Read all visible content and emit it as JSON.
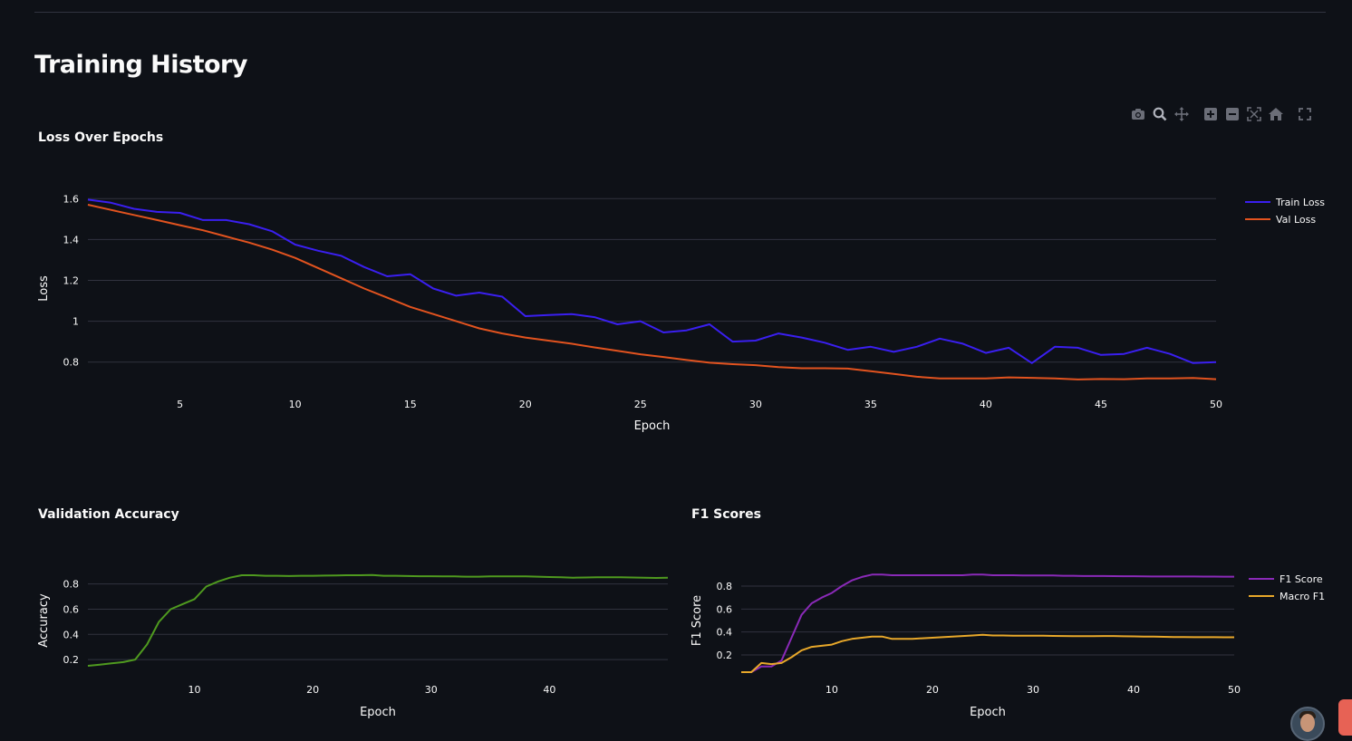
{
  "page": {
    "title": "Training History"
  },
  "modebar": {
    "icons": [
      "camera-icon",
      "zoom-icon",
      "pan-icon",
      "zoom-in-icon",
      "zoom-out-icon",
      "autoscale-icon",
      "home-icon",
      "fullscreen-icon"
    ]
  },
  "colors": {
    "background": "#0e1117",
    "grid": "#31333f",
    "text": "#fafafa",
    "train_loss": "#3a1ff0",
    "val_loss": "#e2531f",
    "accuracy": "#4f9a1f",
    "f1": "#8a2ab8",
    "macro_f1": "#e8a82a"
  },
  "chart_data": [
    {
      "title": "Loss Over Epochs",
      "type": "line",
      "xlabel": "Epoch",
      "ylabel": "Loss",
      "xlim": [
        1,
        50
      ],
      "ylim": [
        0.71,
        1.61
      ],
      "xticks": [
        5,
        10,
        15,
        20,
        25,
        30,
        35,
        40,
        45,
        50
      ],
      "yticks": [
        0.8,
        1,
        1.2,
        1.4,
        1.6
      ],
      "ytick_labels": [
        "0.8",
        "1",
        "1.2",
        "1.4",
        "1.6"
      ],
      "grid": true,
      "legend": "top-right",
      "x": [
        1,
        2,
        3,
        4,
        5,
        6,
        7,
        8,
        9,
        10,
        11,
        12,
        13,
        14,
        15,
        16,
        17,
        18,
        19,
        20,
        21,
        22,
        23,
        24,
        25,
        26,
        27,
        28,
        29,
        30,
        31,
        32,
        33,
        34,
        35,
        36,
        37,
        38,
        39,
        40,
        41,
        42,
        43,
        44,
        45,
        46,
        47,
        48,
        49,
        50
      ],
      "series": [
        {
          "name": "Train Loss",
          "color": "#3a1ff0",
          "values": [
            1.595,
            1.58,
            1.55,
            1.535,
            1.53,
            1.495,
            1.495,
            1.475,
            1.44,
            1.375,
            1.345,
            1.32,
            1.265,
            1.22,
            1.23,
            1.16,
            1.125,
            1.14,
            1.12,
            1.025,
            1.03,
            1.035,
            1.02,
            0.985,
            1.0,
            0.945,
            0.955,
            0.985,
            0.9,
            0.905,
            0.94,
            0.92,
            0.895,
            0.86,
            0.875,
            0.85,
            0.875,
            0.915,
            0.89,
            0.845,
            0.87,
            0.795,
            0.875,
            0.87,
            0.835,
            0.84,
            0.87,
            0.84,
            0.795,
            0.8
          ]
        },
        {
          "name": "Val Loss",
          "color": "#e2531f",
          "values": [
            1.57,
            1.545,
            1.52,
            1.495,
            1.47,
            1.445,
            1.415,
            1.385,
            1.35,
            1.31,
            1.26,
            1.21,
            1.16,
            1.115,
            1.07,
            1.035,
            1.0,
            0.965,
            0.94,
            0.92,
            0.905,
            0.89,
            0.872,
            0.855,
            0.838,
            0.825,
            0.81,
            0.797,
            0.79,
            0.785,
            0.775,
            0.77,
            0.77,
            0.768,
            0.755,
            0.742,
            0.728,
            0.72,
            0.72,
            0.72,
            0.725,
            0.723,
            0.72,
            0.715,
            0.717,
            0.716,
            0.72,
            0.72,
            0.722,
            0.716
          ]
        }
      ]
    },
    {
      "title": "Validation Accuracy",
      "type": "line",
      "xlabel": "Epoch",
      "ylabel": "Accuracy",
      "xlim": [
        1,
        50
      ],
      "ylim": [
        0.1,
        0.92
      ],
      "xticks": [
        10,
        20,
        30,
        40
      ],
      "yticks": [
        0.2,
        0.4,
        0.6,
        0.8
      ],
      "ytick_labels": [
        "0.2",
        "0.4",
        "0.6",
        "0.8"
      ],
      "grid": true,
      "x": [
        1,
        2,
        3,
        4,
        5,
        6,
        7,
        8,
        9,
        10,
        11,
        12,
        13,
        14,
        15,
        16,
        17,
        18,
        19,
        20,
        21,
        22,
        23,
        24,
        25,
        26,
        27,
        28,
        29,
        30,
        31,
        32,
        33,
        34,
        35,
        36,
        37,
        38,
        39,
        40,
        41,
        42,
        43,
        44,
        45,
        46,
        47,
        48,
        49,
        50
      ],
      "series": [
        {
          "color": "#4f9a1f",
          "values": [
            0.15,
            0.16,
            0.17,
            0.18,
            0.2,
            0.32,
            0.5,
            0.6,
            0.64,
            0.68,
            0.78,
            0.82,
            0.85,
            0.87,
            0.87,
            0.865,
            0.865,
            0.863,
            0.865,
            0.865,
            0.867,
            0.868,
            0.87,
            0.87,
            0.872,
            0.865,
            0.865,
            0.863,
            0.862,
            0.862,
            0.86,
            0.86,
            0.858,
            0.858,
            0.86,
            0.86,
            0.86,
            0.86,
            0.858,
            0.855,
            0.853,
            0.85,
            0.852,
            0.853,
            0.853,
            0.853,
            0.852,
            0.85,
            0.848,
            0.85
          ]
        }
      ]
    },
    {
      "title": "F1 Scores",
      "type": "line",
      "xlabel": "Epoch",
      "ylabel": "F1 Score",
      "xlim": [
        1,
        50
      ],
      "ylim": [
        0.05,
        0.95
      ],
      "xticks": [
        10,
        20,
        30,
        40,
        50
      ],
      "yticks": [
        0.2,
        0.4,
        0.6,
        0.8
      ],
      "ytick_labels": [
        "0.2",
        "0.4",
        "0.6",
        "0.8"
      ],
      "grid": true,
      "legend": "top-right",
      "x": [
        1,
        2,
        3,
        4,
        5,
        6,
        7,
        8,
        9,
        10,
        11,
        12,
        13,
        14,
        15,
        16,
        17,
        18,
        19,
        20,
        21,
        22,
        23,
        24,
        25,
        26,
        27,
        28,
        29,
        30,
        31,
        32,
        33,
        34,
        35,
        36,
        37,
        38,
        39,
        40,
        41,
        42,
        43,
        44,
        45,
        46,
        47,
        48,
        49,
        50
      ],
      "series": [
        {
          "name": "F1 Score",
          "color": "#8a2ab8",
          "values": [
            0.05,
            0.05,
            0.1,
            0.1,
            0.15,
            0.35,
            0.55,
            0.65,
            0.7,
            0.74,
            0.8,
            0.85,
            0.88,
            0.9,
            0.9,
            0.895,
            0.895,
            0.895,
            0.895,
            0.895,
            0.895,
            0.895,
            0.895,
            0.9,
            0.9,
            0.895,
            0.895,
            0.895,
            0.893,
            0.893,
            0.892,
            0.892,
            0.89,
            0.89,
            0.888,
            0.888,
            0.888,
            0.887,
            0.886,
            0.886,
            0.885,
            0.884,
            0.884,
            0.884,
            0.884,
            0.884,
            0.883,
            0.883,
            0.882,
            0.882
          ]
        },
        {
          "name": "Macro F1",
          "color": "#e8a82a",
          "values": [
            0.05,
            0.05,
            0.13,
            0.12,
            0.13,
            0.18,
            0.24,
            0.27,
            0.28,
            0.29,
            0.32,
            0.34,
            0.35,
            0.36,
            0.36,
            0.34,
            0.34,
            0.34,
            0.345,
            0.35,
            0.355,
            0.36,
            0.365,
            0.37,
            0.375,
            0.37,
            0.37,
            0.368,
            0.367,
            0.367,
            0.367,
            0.366,
            0.365,
            0.364,
            0.364,
            0.364,
            0.365,
            0.365,
            0.363,
            0.362,
            0.36,
            0.36,
            0.358,
            0.356,
            0.356,
            0.355,
            0.355,
            0.355,
            0.354,
            0.354
          ]
        }
      ]
    }
  ]
}
